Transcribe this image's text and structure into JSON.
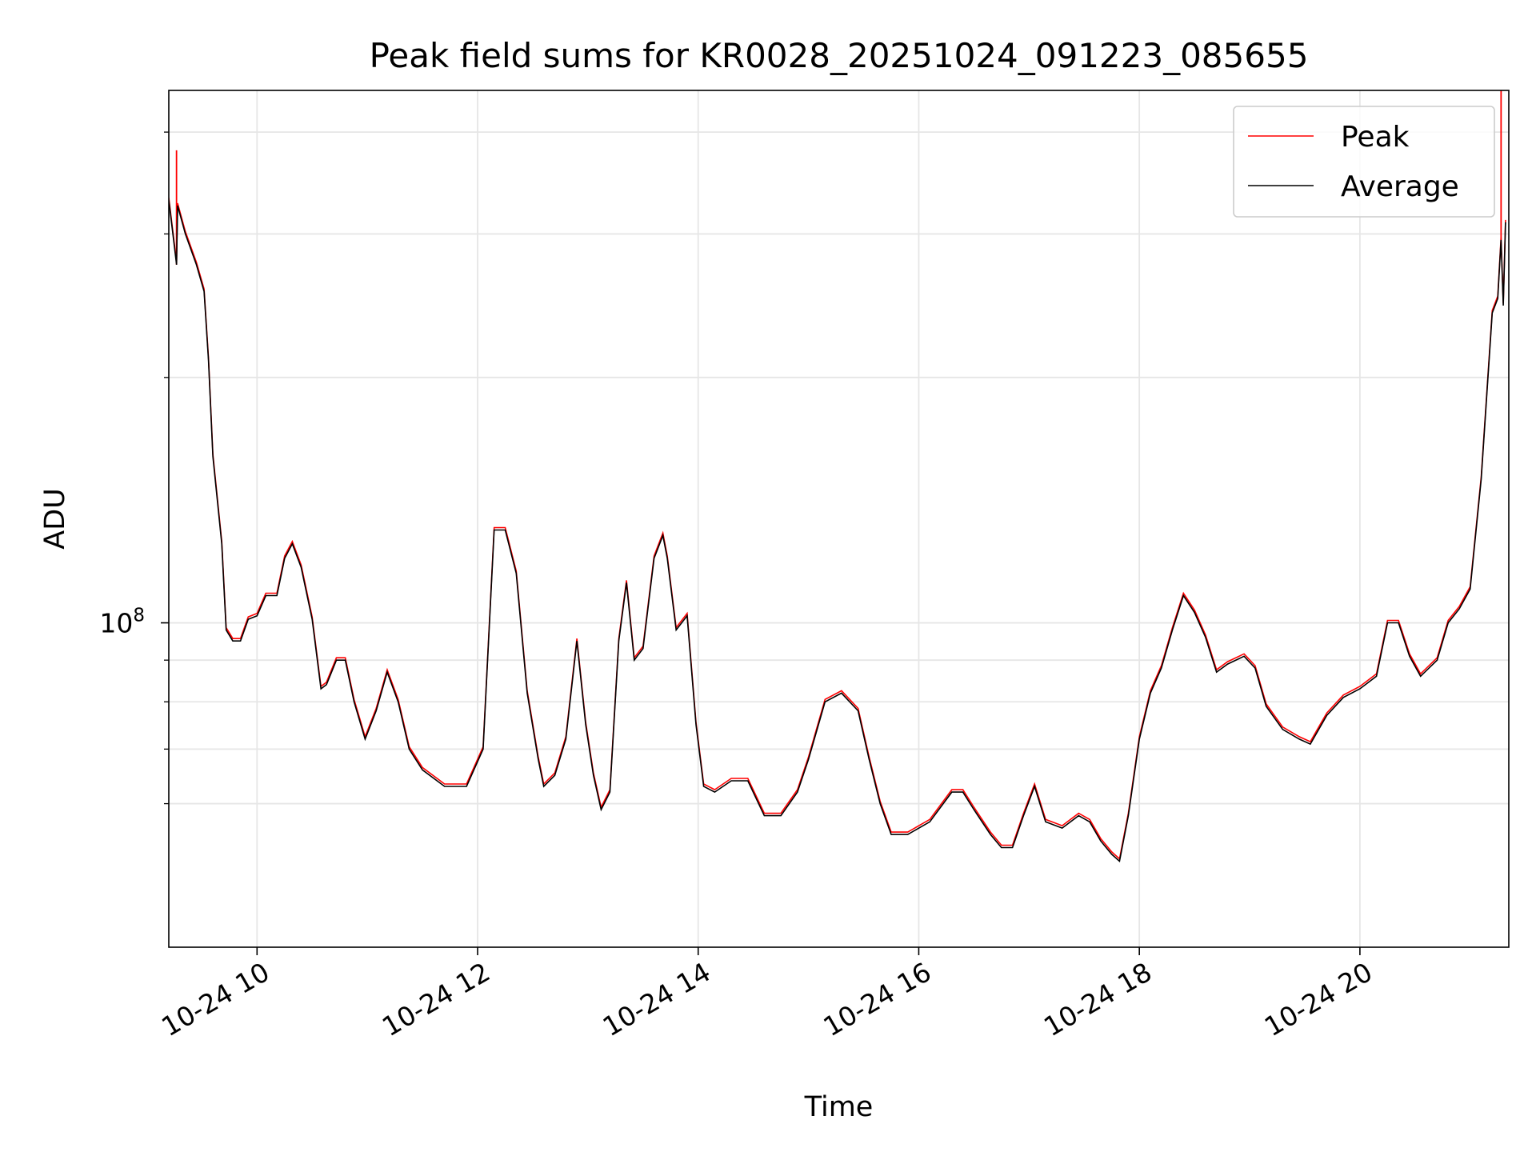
{
  "chart_data": {
    "type": "line",
    "title": "Peak field sums for KR0028_20251024_091223_085655",
    "xlabel": "Time",
    "ylabel": "ADU",
    "yscale": "log",
    "grid": true,
    "legend_position": "top-right",
    "x_unit": "hour of 2025-10-24",
    "xlim": [
      9.2,
      21.35
    ],
    "ylim": [
      40000000,
      450000000
    ],
    "x_ticks": [
      10,
      12,
      14,
      16,
      18,
      20
    ],
    "x_tick_labels": [
      "10-24 10",
      "10-24 12",
      "10-24 14",
      "10-24 16",
      "10-24 18",
      "10-24 20"
    ],
    "y_major_ticks": [
      100000000
    ],
    "y_minor_ticks": [
      60000000,
      70000000,
      80000000,
      90000000,
      200000000,
      300000000,
      400000000
    ],
    "y_tick_labels": [
      {
        "base": "10",
        "exp": "8"
      }
    ],
    "colors": {
      "peak": "#ff0000",
      "average": "#000000"
    },
    "series": [
      {
        "name": "Peak",
        "color": "#ff0000",
        "peak_spikes": [
          [
            9.27,
            380000000
          ],
          [
            21.28,
            450000000
          ]
        ]
      },
      {
        "name": "Average",
        "color": "#000000"
      }
    ],
    "x": [
      9.2,
      9.25,
      9.27,
      9.28,
      9.35,
      9.45,
      9.52,
      9.56,
      9.6,
      9.68,
      9.72,
      9.78,
      9.85,
      9.92,
      10.0,
      10.08,
      10.18,
      10.25,
      10.32,
      10.4,
      10.5,
      10.58,
      10.63,
      10.72,
      10.8,
      10.88,
      10.98,
      11.08,
      11.18,
      11.28,
      11.38,
      11.5,
      11.7,
      11.9,
      12.05,
      12.15,
      12.25,
      12.35,
      12.45,
      12.55,
      12.6,
      12.7,
      12.8,
      12.9,
      12.98,
      13.05,
      13.12,
      13.2,
      13.28,
      13.35,
      13.42,
      13.5,
      13.6,
      13.68,
      13.72,
      13.8,
      13.9,
      13.98,
      14.05,
      14.15,
      14.3,
      14.45,
      14.6,
      14.75,
      14.9,
      15.0,
      15.15,
      15.3,
      15.45,
      15.55,
      15.65,
      15.75,
      15.9,
      16.1,
      16.3,
      16.4,
      16.5,
      16.65,
      16.75,
      16.85,
      16.95,
      17.05,
      17.15,
      17.3,
      17.45,
      17.55,
      17.65,
      17.75,
      17.82,
      17.9,
      18.0,
      18.1,
      18.2,
      18.3,
      18.4,
      18.5,
      18.6,
      18.7,
      18.8,
      18.95,
      19.05,
      19.15,
      19.3,
      19.45,
      19.55,
      19.7,
      19.85,
      20.0,
      20.15,
      20.25,
      20.35,
      20.45,
      20.55,
      20.7,
      20.8,
      20.9,
      21.0,
      21.1,
      21.2,
      21.25,
      21.28,
      21.3,
      21.32
    ],
    "values": [
      330000000,
      290000000,
      275000000,
      325000000,
      300000000,
      275000000,
      255000000,
      210000000,
      160000000,
      125000000,
      98000000,
      95000000,
      95000000,
      101000000,
      102000000,
      108000000,
      108000000,
      120000000,
      125000000,
      117000000,
      101000000,
      83000000,
      84000000,
      90000000,
      90000000,
      80000000,
      72000000,
      78000000,
      87000000,
      80000000,
      70000000,
      66000000,
      63000000,
      63000000,
      70000000,
      130000000,
      130000000,
      115000000,
      82000000,
      68000000,
      63000000,
      65000000,
      72000000,
      95000000,
      75000000,
      65000000,
      59000000,
      62000000,
      95000000,
      112000000,
      90000000,
      93000000,
      120000000,
      128000000,
      120000000,
      98000000,
      102000000,
      75000000,
      63000000,
      62000000,
      64000000,
      64000000,
      58000000,
      58000000,
      62000000,
      68000000,
      80000000,
      82000000,
      78000000,
      68000000,
      60000000,
      55000000,
      55000000,
      57000000,
      62000000,
      62000000,
      59000000,
      55000000,
      53000000,
      53000000,
      58000000,
      63000000,
      57000000,
      56000000,
      58000000,
      57000000,
      54000000,
      52000000,
      51000000,
      58000000,
      72000000,
      82000000,
      88000000,
      98000000,
      108000000,
      103000000,
      96000000,
      87000000,
      89000000,
      91000000,
      88000000,
      79000000,
      74000000,
      72000000,
      71000000,
      77000000,
      81000000,
      83000000,
      86000000,
      100000000,
      100000000,
      91000000,
      86000000,
      90000000,
      100000000,
      104000000,
      110000000,
      150000000,
      240000000,
      250000000,
      295000000,
      245000000,
      310000000
    ]
  }
}
